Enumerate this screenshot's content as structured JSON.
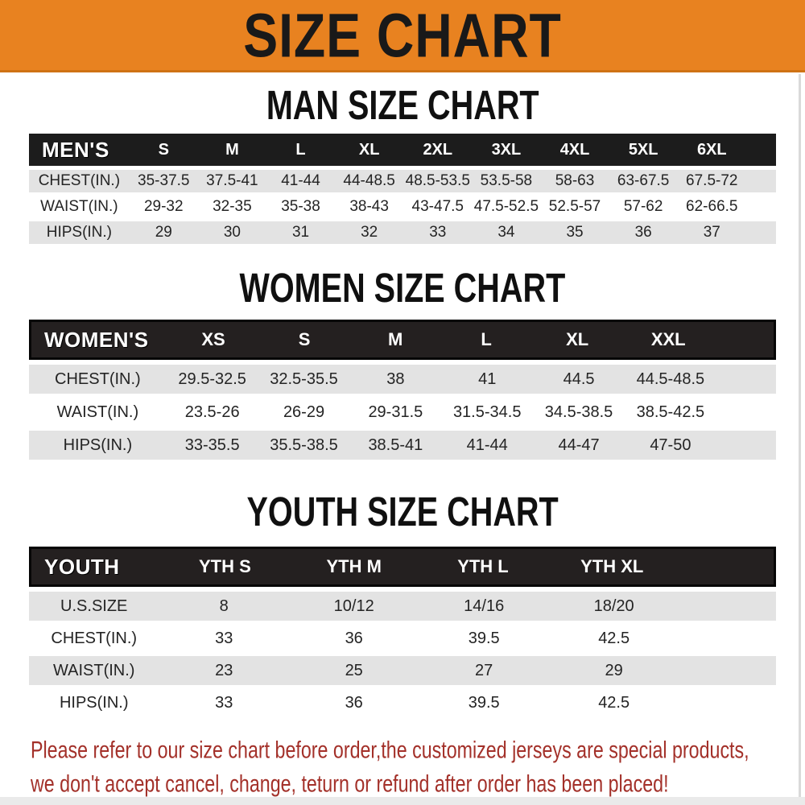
{
  "banner": {
    "title": "SIZE CHART"
  },
  "sections": [
    {
      "id": "men",
      "title": "MAN SIZE CHART",
      "table": {
        "header": [
          "MEN'S",
          "S",
          "M",
          "L",
          "XL",
          "2XL",
          "3XL",
          "4XL",
          "5XL",
          "6XL"
        ],
        "rows": [
          {
            "label": "CHEST(IN.)",
            "values": [
              "35-37.5",
              "37.5-41",
              "41-44",
              "44-48.5",
              "48.5-53.5",
              "53.5-58",
              "58-63",
              "63-67.5",
              "67.5-72"
            ]
          },
          {
            "label": "WAIST(IN.)",
            "values": [
              "29-32",
              "32-35",
              "35-38",
              "38-43",
              "43-47.5",
              "47.5-52.5",
              "52.5-57",
              "57-62",
              "62-66.5"
            ]
          },
          {
            "label": "HIPS(IN.)",
            "values": [
              "29",
              "30",
              "31",
              "32",
              "33",
              "34",
              "35",
              "36",
              "37"
            ]
          }
        ]
      }
    },
    {
      "id": "women",
      "title": "WOMEN SIZE CHART",
      "table": {
        "header": [
          "WOMEN'S",
          "XS",
          "S",
          "M",
          "L",
          "XL",
          "XXL"
        ],
        "rows": [
          {
            "label": "CHEST(IN.)",
            "values": [
              "29.5-32.5",
              "32.5-35.5",
              "38",
              "41",
              "44.5",
              "44.5-48.5"
            ]
          },
          {
            "label": "WAIST(IN.)",
            "values": [
              "23.5-26",
              "26-29",
              "29-31.5",
              "31.5-34.5",
              "34.5-38.5",
              "38.5-42.5"
            ]
          },
          {
            "label": "HIPS(IN.)",
            "values": [
              "33-35.5",
              "35.5-38.5",
              "38.5-41",
              "41-44",
              "44-47",
              "47-50"
            ]
          }
        ]
      }
    },
    {
      "id": "youth",
      "title": "YOUTH SIZE CHART",
      "table": {
        "header": [
          "YOUTH",
          "YTH S",
          "YTH M",
          "YTH L",
          "YTH XL"
        ],
        "rows": [
          {
            "label": "U.S.SIZE",
            "values": [
              "8",
              "10/12",
              "14/16",
              "18/20"
            ]
          },
          {
            "label": "CHEST(IN.)",
            "values": [
              "33",
              "36",
              "39.5",
              "42.5"
            ]
          },
          {
            "label": "WAIST(IN.)",
            "values": [
              "23",
              "25",
              "27",
              "29"
            ]
          },
          {
            "label": "HIPS(IN.)",
            "values": [
              "33",
              "36",
              "39.5",
              "42.5"
            ]
          }
        ]
      }
    }
  ],
  "footer": {
    "lines": [
      "Please refer to our size chart before order,the customized jerseys are special products,",
      "we don't accept cancel, change, teturn or refund after order has been placed!"
    ]
  },
  "colors": {
    "banner_bg": "#e88220",
    "table_header_bg": "#1c1c1c",
    "row_stripe": "#e3e3e3",
    "footer_text": "#a33029"
  }
}
